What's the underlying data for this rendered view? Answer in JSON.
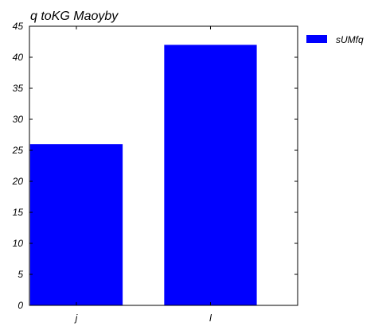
{
  "chart_data": {
    "type": "bar",
    "title": "q  toKG Maoyby",
    "xlabel": "",
    "ylabel": "",
    "categories": [
      "j",
      "l"
    ],
    "series": [
      {
        "name": "sUMfq",
        "values": [
          26,
          42
        ],
        "color": "#0000ff"
      }
    ],
    "ylim": [
      0,
      45
    ],
    "yticks": [
      0,
      5,
      10,
      15,
      20,
      25,
      30,
      35,
      40,
      45
    ],
    "grid": false,
    "legend_position": "outside-right-top"
  }
}
